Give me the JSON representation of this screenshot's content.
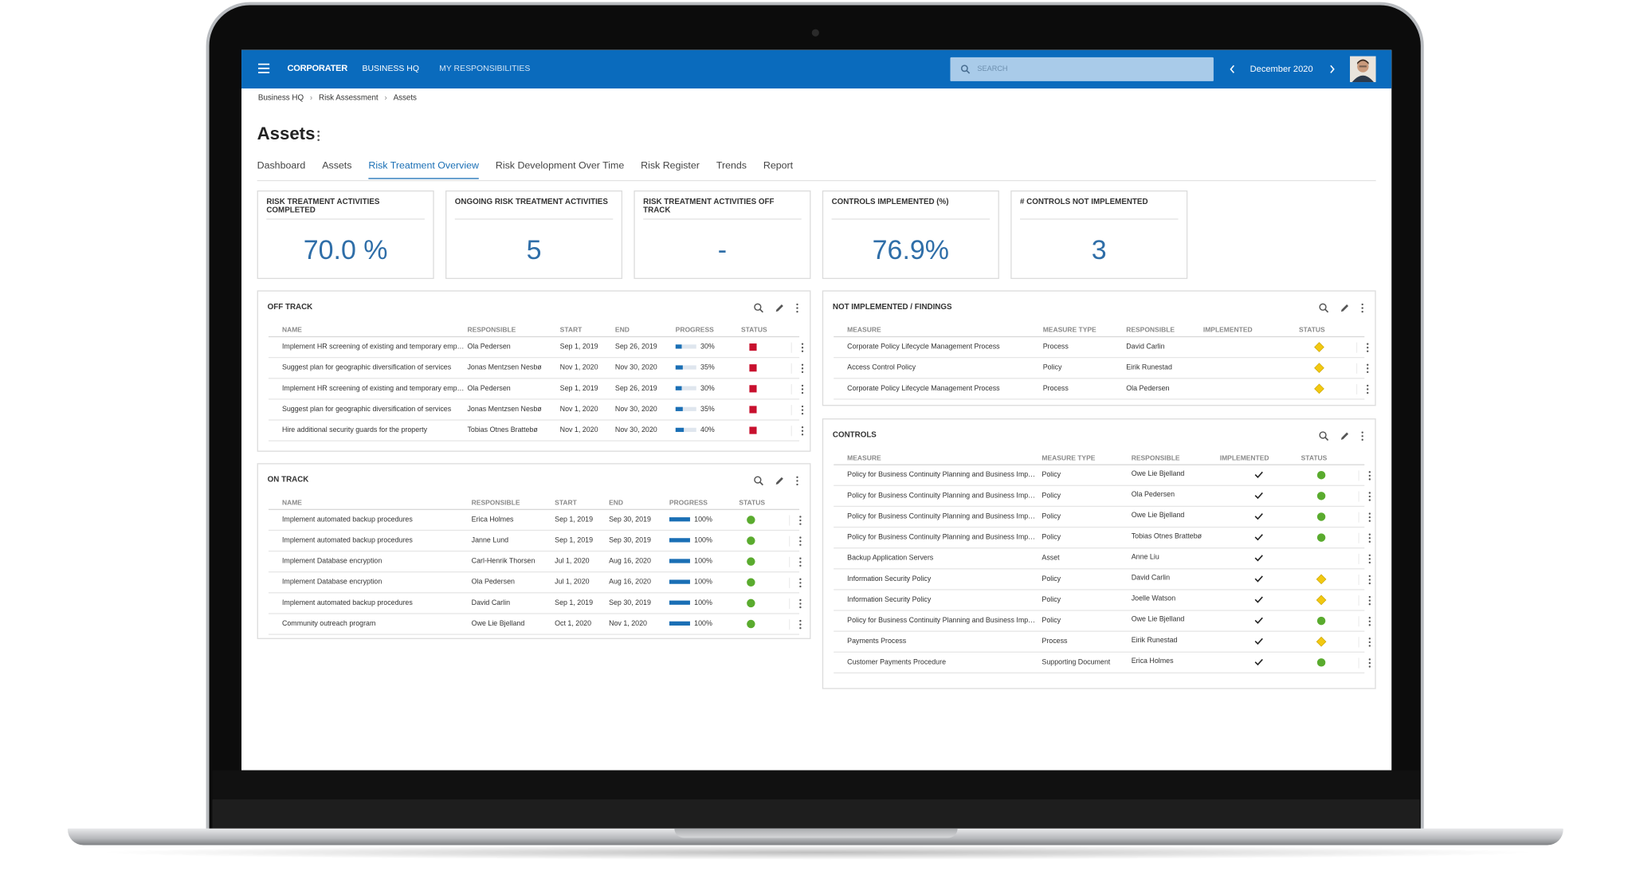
{
  "header": {
    "logo": "CORPORATER",
    "nav": [
      "BUSINESS HQ",
      "MY RESPONSIBILITIES"
    ],
    "search": "SEARCH",
    "period": "December 2020"
  },
  "breadcrumb": [
    "Business HQ",
    "Risk Assessment",
    "Assets"
  ],
  "page_title": "Assets",
  "tabs": {
    "items": [
      "Dashboard",
      "Assets",
      "Risk Treatment Overview",
      "Risk Development Over Time",
      "Risk Register",
      "Trends",
      "Report"
    ],
    "active": 2
  },
  "kpis": [
    {
      "title": "RISK TREATMENT ACTIVITIES COMPLETED",
      "value": "70.0 %"
    },
    {
      "title": "ONGOING RISK TREATMENT ACTIVITIES",
      "value": "5"
    },
    {
      "title": "RISK TREATMENT ACTIVITIES OFF TRACK",
      "value": "-"
    },
    {
      "title": "CONTROLS IMPLEMENTED (%)",
      "value": "76.9%"
    },
    {
      "title": "# CONTROLS NOT IMPLEMENTED",
      "value": "3"
    }
  ],
  "off_track": {
    "title": "OFF TRACK",
    "columns": [
      "NAME",
      "RESPONSIBLE",
      "START",
      "END",
      "PROGRESS",
      "STATUS"
    ],
    "bar_color": "#1a6fb5",
    "rows": [
      {
        "name": "Implement HR screening of existing and temporary employees",
        "responsible": "Ola Pedersen",
        "start": "Sep 1, 2019",
        "end": "Sep 26, 2019",
        "progress": {
          "value": 30,
          "label": "30%"
        },
        "status": {
          "shape": "square",
          "color": "#c8102e"
        }
      },
      {
        "name": "Suggest plan for geographic diversification of services",
        "responsible": "Jonas Mentzsen Nesbø",
        "start": "Nov 1, 2020",
        "end": "Nov 30, 2020",
        "progress": {
          "value": 35,
          "label": "35%"
        },
        "status": {
          "shape": "square",
          "color": "#c8102e"
        }
      },
      {
        "name": "Implement HR screening of existing and temporary employees",
        "responsible": "Ola Pedersen",
        "start": "Sep 1, 2019",
        "end": "Sep 26, 2019",
        "progress": {
          "value": 30,
          "label": "30%"
        },
        "status": {
          "shape": "square",
          "color": "#c8102e"
        }
      },
      {
        "name": "Suggest plan for geographic diversification of services",
        "responsible": "Jonas Mentzsen Nesbø",
        "start": "Nov 1, 2020",
        "end": "Nov 30, 2020",
        "progress": {
          "value": 35,
          "label": "35%"
        },
        "status": {
          "shape": "square",
          "color": "#c8102e"
        }
      },
      {
        "name": "Hire additional security guards for the property",
        "responsible": "Tobias Otnes Brattebø",
        "start": "Nov 1, 2020",
        "end": "Nov 30, 2020",
        "progress": {
          "value": 40,
          "label": "40%"
        },
        "status": {
          "shape": "square",
          "color": "#c8102e"
        }
      }
    ]
  },
  "on_track": {
    "title": "ON TRACK",
    "columns": [
      "NAME",
      "RESPONSIBLE",
      "START",
      "END",
      "PROGRESS",
      "STATUS"
    ],
    "bar_color": "#1a6fb5",
    "rows": [
      {
        "name": "Implement automated backup procedures",
        "responsible": "Erica Holmes",
        "start": "Sep 1, 2019",
        "end": "Sep 30, 2019",
        "progress": {
          "value": 100,
          "label": "100%"
        },
        "status": {
          "shape": "circle",
          "color": "#5aab2e"
        }
      },
      {
        "name": "Implement automated backup procedures",
        "responsible": "Janne Lund",
        "start": "Sep 1, 2019",
        "end": "Sep 30, 2019",
        "progress": {
          "value": 100,
          "label": "100%"
        },
        "status": {
          "shape": "circle",
          "color": "#5aab2e"
        }
      },
      {
        "name": "Implement Database encryption",
        "responsible": "Carl-Henrik Thorsen",
        "start": "Jul 1, 2020",
        "end": "Aug 16, 2020",
        "progress": {
          "value": 100,
          "label": "100%"
        },
        "status": {
          "shape": "circle",
          "color": "#5aab2e"
        }
      },
      {
        "name": "Implement Database encryption",
        "responsible": "Ola Pedersen",
        "start": "Jul 1, 2020",
        "end": "Aug 16, 2020",
        "progress": {
          "value": 100,
          "label": "100%"
        },
        "status": {
          "shape": "circle",
          "color": "#5aab2e"
        }
      },
      {
        "name": "Implement automated backup procedures",
        "responsible": "David Carlin",
        "start": "Sep 1, 2019",
        "end": "Sep 30, 2019",
        "progress": {
          "value": 100,
          "label": "100%"
        },
        "status": {
          "shape": "circle",
          "color": "#5aab2e"
        }
      },
      {
        "name": "Community outreach program",
        "responsible": "Owe Lie Bjelland",
        "start": "Oct 1, 2020",
        "end": "Nov 1, 2020",
        "progress": {
          "value": 100,
          "label": "100%"
        },
        "status": {
          "shape": "circle",
          "color": "#5aab2e"
        }
      }
    ]
  },
  "not_implemented": {
    "title": "NOT IMPLEMENTED / FINDINGS",
    "columns": [
      "MEASURE",
      "MEASURE TYPE",
      "RESPONSIBLE",
      "IMPLEMENTED",
      "STATUS"
    ],
    "rows": [
      {
        "measure": "Corporate Policy Lifecycle Management Process",
        "type": "Process",
        "responsible": "David Carlin",
        "status": {
          "shape": "diamond",
          "color": "#f2c811"
        }
      },
      {
        "measure": "Access Control Policy",
        "type": "Policy",
        "responsible": "Eirik Runestad",
        "status": {
          "shape": "diamond",
          "color": "#f2c811"
        }
      },
      {
        "measure": "Corporate Policy Lifecycle Management Process",
        "type": "Process",
        "responsible": "Ola Pedersen",
        "status": {
          "shape": "diamond",
          "color": "#f2c811"
        }
      }
    ]
  },
  "controls": {
    "title": "CONTROLS",
    "columns": [
      "MEASURE",
      "MEASURE TYPE",
      "RESPONSIBLE",
      "IMPLEMENTED",
      "STATUS"
    ],
    "rows": [
      {
        "measure": "Policy for Business Continuity Planning and Business Impact Analysis",
        "type": "Policy",
        "responsible": "Owe Lie Bjelland",
        "status": {
          "shape": "circle",
          "color": "#5aab2e"
        }
      },
      {
        "measure": "Policy for Business Continuity Planning and Business Impact Analysis",
        "type": "Policy",
        "responsible": "Ola Pedersen",
        "status": {
          "shape": "circle",
          "color": "#5aab2e"
        }
      },
      {
        "measure": "Policy for Business Continuity Planning and Business Impact Analysis",
        "type": "Policy",
        "responsible": "Owe Lie Bjelland",
        "status": {
          "shape": "circle",
          "color": "#5aab2e"
        }
      },
      {
        "measure": "Policy for Business Continuity Planning and Business Impact Analysis",
        "type": "Policy",
        "responsible": "Tobias Otnes Brattebø",
        "status": {
          "shape": "circle",
          "color": "#5aab2e"
        }
      },
      {
        "measure": "Backup Application Servers",
        "type": "Asset",
        "responsible": "Anne Liu"
      },
      {
        "measure": "Information Security Policy",
        "type": "Policy",
        "responsible": "David Carlin",
        "status": {
          "shape": "diamond",
          "color": "#f2c811"
        }
      },
      {
        "measure": "Information Security Policy",
        "type": "Policy",
        "responsible": "Joelle Watson",
        "status": {
          "shape": "diamond",
          "color": "#f2c811"
        }
      },
      {
        "measure": "Policy for Business Continuity Planning and Business Impact Analysis",
        "type": "Policy",
        "responsible": "Owe Lie Bjelland",
        "status": {
          "shape": "circle",
          "color": "#5aab2e"
        }
      },
      {
        "measure": "Payments Process",
        "type": "Process",
        "responsible": "Eirik Runestad",
        "status": {
          "shape": "diamond",
          "color": "#f2c811"
        }
      },
      {
        "measure": "Customer Payments Procedure",
        "type": "Supporting Document",
        "responsible": "Erica Holmes",
        "status": {
          "shape": "circle",
          "color": "#5aab2e"
        }
      }
    ]
  }
}
